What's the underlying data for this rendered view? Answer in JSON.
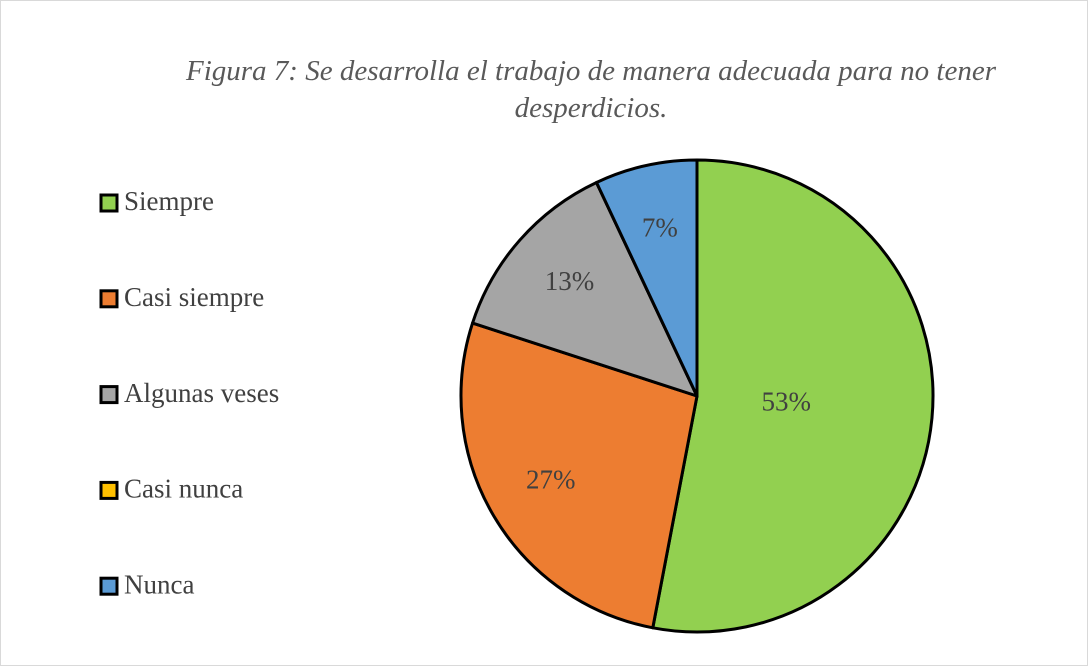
{
  "chart_data": {
    "type": "pie",
    "title": "Figura 7: Se desarrolla el trabajo de manera adecuada para no tener desperdicios.",
    "categories": [
      "Siempre",
      "Casi siempre",
      "Algunas veses",
      "Casi nunca",
      "Nunca"
    ],
    "values": [
      53,
      27,
      13,
      0,
      7
    ],
    "value_labels": [
      "53%",
      "27%",
      "13%",
      null,
      "7%"
    ],
    "colors": [
      "#92d050",
      "#ed7d31",
      "#a5a5a5",
      "#ffc000",
      "#5b9bd5"
    ],
    "legend": "left"
  }
}
